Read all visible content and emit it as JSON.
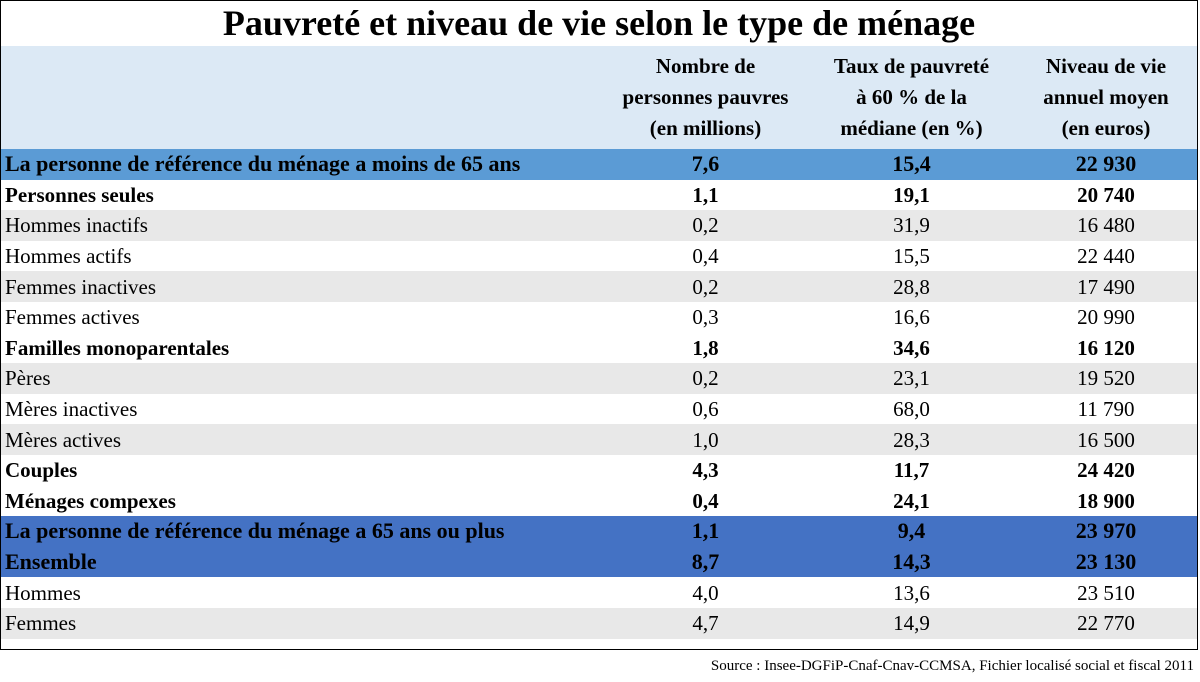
{
  "title": "Pauvreté et niveau de vie selon le type de ménage",
  "headers": {
    "col1_line1": "Nombre de",
    "col1_line2": "personnes pauvres",
    "col1_line3": "(en millions)",
    "col2_line1": "Taux de pauvreté",
    "col2_line2": "à 60 % de la",
    "col2_line3": "médiane (en %)",
    "col3_line1": "Niveau de vie",
    "col3_line2": "annuel moyen",
    "col3_line3": "(en euros)"
  },
  "rows": [
    {
      "label": "La personne de référence du ménage a moins de 65 ans",
      "pauvres": "7,6",
      "taux": "15,4",
      "niveau": "22 930",
      "style": "band-light"
    },
    {
      "label": "Personnes seules",
      "pauvres": "1,1",
      "taux": "19,1",
      "niveau": "20 740",
      "style": "bold"
    },
    {
      "label": "Hommes inactifs",
      "pauvres": "0,2",
      "taux": "31,9",
      "niveau": "16 480",
      "style": "shade"
    },
    {
      "label": "Hommes actifs",
      "pauvres": "0,4",
      "taux": "15,5",
      "niveau": "22 440",
      "style": "plain"
    },
    {
      "label": "Femmes inactives",
      "pauvres": "0,2",
      "taux": "28,8",
      "niveau": "17 490",
      "style": "shade"
    },
    {
      "label": "Femmes actives",
      "pauvres": "0,3",
      "taux": "16,6",
      "niveau": "20 990",
      "style": "plain"
    },
    {
      "label": "Familles monoparentales",
      "pauvres": "1,8",
      "taux": "34,6",
      "niveau": "16 120",
      "style": "bold"
    },
    {
      "label": "Pères",
      "pauvres": "0,2",
      "taux": "23,1",
      "niveau": "19 520",
      "style": "shade"
    },
    {
      "label": "Mères inactives",
      "pauvres": "0,6",
      "taux": "68,0",
      "niveau": "11 790",
      "style": "plain"
    },
    {
      "label": "Mères actives",
      "pauvres": "1,0",
      "taux": "28,3",
      "niveau": "16 500",
      "style": "shade"
    },
    {
      "label": "Couples",
      "pauvres": "4,3",
      "taux": "11,7",
      "niveau": "24 420",
      "style": "bold"
    },
    {
      "label": "Ménages compexes",
      "pauvres": "0,4",
      "taux": "24,1",
      "niveau": "18 900",
      "style": "bold"
    },
    {
      "label": "La personne de référence du ménage a 65 ans ou plus",
      "pauvres": "1,1",
      "taux": "9,4",
      "niveau": "23 970",
      "style": "band-dark"
    },
    {
      "label": "Ensemble",
      "pauvres": "8,7",
      "taux": "14,3",
      "niveau": "23 130",
      "style": "band-dark"
    },
    {
      "label": "Hommes",
      "pauvres": "4,0",
      "taux": "13,6",
      "niveau": "23 510",
      "style": "plain"
    },
    {
      "label": "Femmes",
      "pauvres": "4,7",
      "taux": "14,9",
      "niveau": "22 770",
      "style": "shade"
    }
  ],
  "source": "Source : Insee-DGFiP-Cnaf-Cnav-CCMSA, Fichier localisé social et fiscal 2011",
  "colors": {
    "header_bg": "#dce9f5",
    "band_light": "#5b9bd5",
    "band_dark": "#4472c4",
    "shade": "#e8e8e8"
  }
}
